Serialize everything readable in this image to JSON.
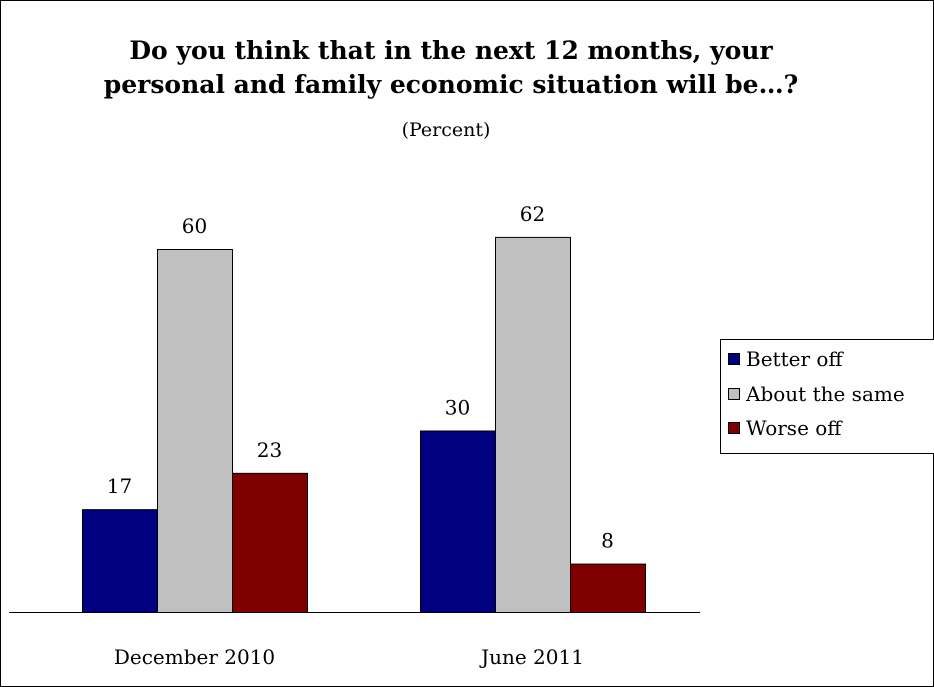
{
  "chart_data": {
    "type": "bar",
    "title_lines": [
      "Do you think that in the next 12 months, your",
      "personal and family economic situation will be…?"
    ],
    "subtitle": "(Percent)",
    "categories": [
      "December 2010",
      "June 2011"
    ],
    "series": [
      {
        "name": "Better off",
        "values": [
          17,
          30
        ],
        "color": "#000080"
      },
      {
        "name": "About the same",
        "values": [
          60,
          62
        ],
        "color": "#c0c0c0"
      },
      {
        "name": "Worse off",
        "values": [
          23,
          8
        ],
        "color": "#800000"
      }
    ],
    "ylim": [
      0,
      70
    ],
    "grid": false,
    "legend_position": "right"
  }
}
